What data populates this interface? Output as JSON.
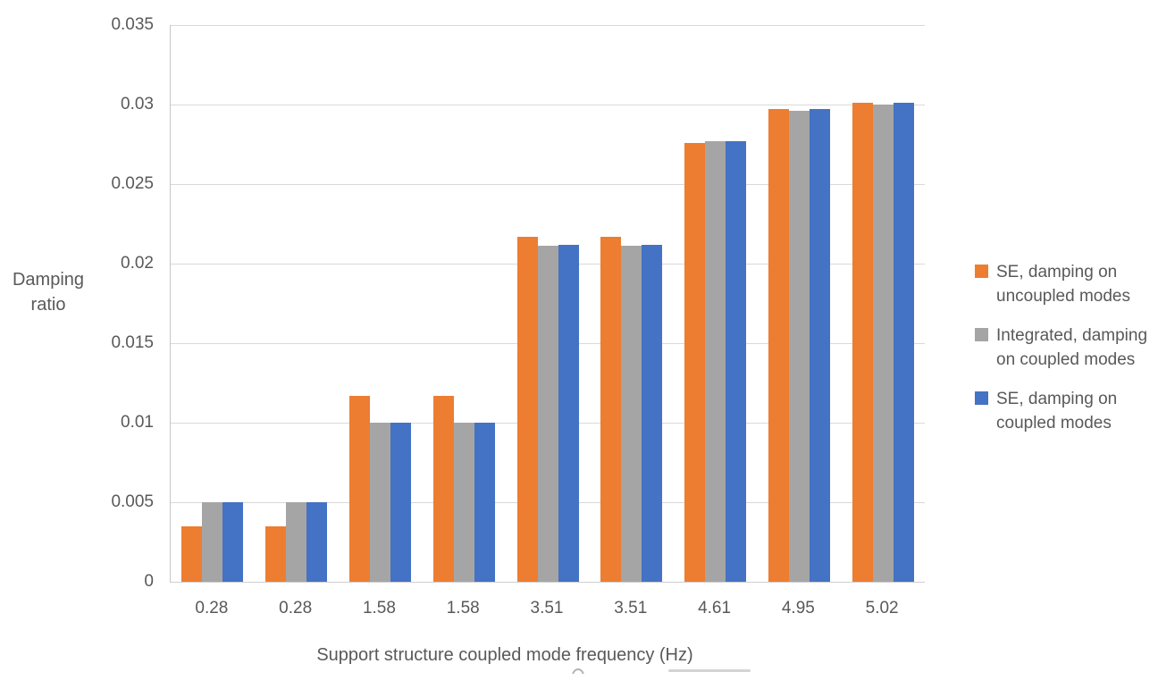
{
  "chart_data": {
    "type": "bar",
    "categories": [
      "0.28",
      "0.28",
      "1.58",
      "1.58",
      "3.51",
      "3.51",
      "4.61",
      "4.95",
      "5.02"
    ],
    "series": [
      {
        "name": "SE, damping on uncoupled modes",
        "legend_lines": [
          "SE, damping on",
          "uncoupled modes"
        ],
        "color": "#ED7D31",
        "values": [
          0.0035,
          0.0035,
          0.0117,
          0.0117,
          0.0217,
          0.0217,
          0.0276,
          0.0297,
          0.0301
        ]
      },
      {
        "name": "Integrated, damping on coupled modes",
        "legend_lines": [
          "Integrated, damping",
          "on coupled modes"
        ],
        "color": "#A5A5A5",
        "values": [
          0.005,
          0.005,
          0.01,
          0.01,
          0.0211,
          0.0211,
          0.0277,
          0.0296,
          0.03
        ]
      },
      {
        "name": "SE, damping on coupled modes",
        "legend_lines": [
          "SE, damping on",
          "coupled modes"
        ],
        "color": "#4472C4",
        "values": [
          0.005,
          0.005,
          0.01,
          0.01,
          0.0212,
          0.0212,
          0.0277,
          0.0297,
          0.0301
        ]
      }
    ],
    "xlabel": "Support structure coupled mode frequency (Hz)",
    "ylabel": "Damping ratio",
    "ylim": [
      0,
      0.035
    ],
    "yticks": [
      {
        "value": 0,
        "label": "0"
      },
      {
        "value": 0.005,
        "label": "0.005"
      },
      {
        "value": 0.01,
        "label": "0.01"
      },
      {
        "value": 0.015,
        "label": "0.015"
      },
      {
        "value": 0.02,
        "label": "0.02"
      },
      {
        "value": 0.025,
        "label": "0.025"
      },
      {
        "value": 0.03,
        "label": "0.03"
      },
      {
        "value": 0.035,
        "label": "0.035"
      }
    ],
    "grid": true,
    "legend_position": "right"
  },
  "colors": {
    "gridline": "#D9D9D9",
    "axis_line": "#C6C6C6",
    "text": "#595959",
    "background": "#FFFFFF"
  }
}
